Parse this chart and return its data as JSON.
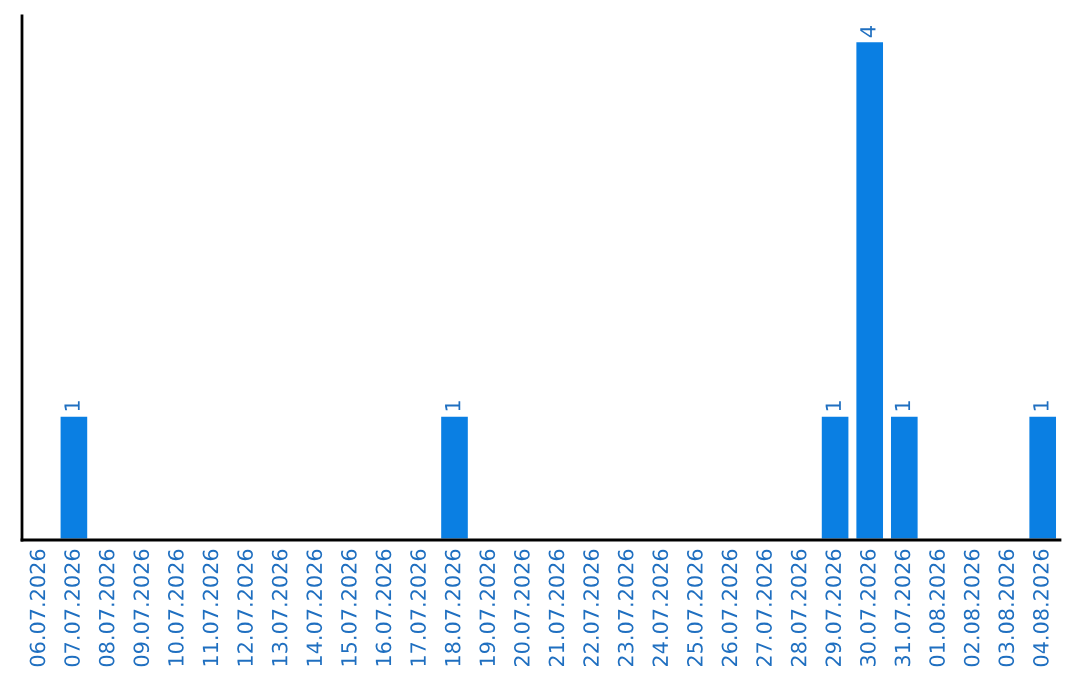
{
  "chart_data": {
    "type": "bar",
    "categories": [
      "06.07.2026",
      "07.07.2026",
      "08.07.2026",
      "09.07.2026",
      "10.07.2026",
      "11.07.2026",
      "12.07.2026",
      "13.07.2026",
      "14.07.2026",
      "15.07.2026",
      "16.07.2026",
      "17.07.2026",
      "18.07.2026",
      "19.07.2026",
      "20.07.2026",
      "21.07.2026",
      "22.07.2026",
      "23.07.2026",
      "24.07.2026",
      "25.07.2026",
      "26.07.2026",
      "27.07.2026",
      "28.07.2026",
      "29.07.2026",
      "30.07.2026",
      "31.07.2026",
      "01.08.2026",
      "02.08.2026",
      "03.08.2026",
      "04.08.2026"
    ],
    "values": [
      null,
      1,
      null,
      null,
      null,
      null,
      null,
      null,
      null,
      null,
      null,
      null,
      1,
      null,
      null,
      null,
      null,
      null,
      null,
      null,
      null,
      null,
      null,
      1,
      4,
      1,
      null,
      null,
      null,
      1
    ],
    "value_labels": [
      null,
      "1",
      null,
      null,
      null,
      null,
      null,
      null,
      null,
      null,
      null,
      null,
      "1",
      null,
      null,
      null,
      null,
      null,
      null,
      null,
      null,
      null,
      null,
      "1",
      "4",
      "1",
      null,
      null,
      null,
      "1"
    ],
    "color": "#0a7fe3",
    "tick_labels": "x",
    "grid": false,
    "legend": false
  }
}
